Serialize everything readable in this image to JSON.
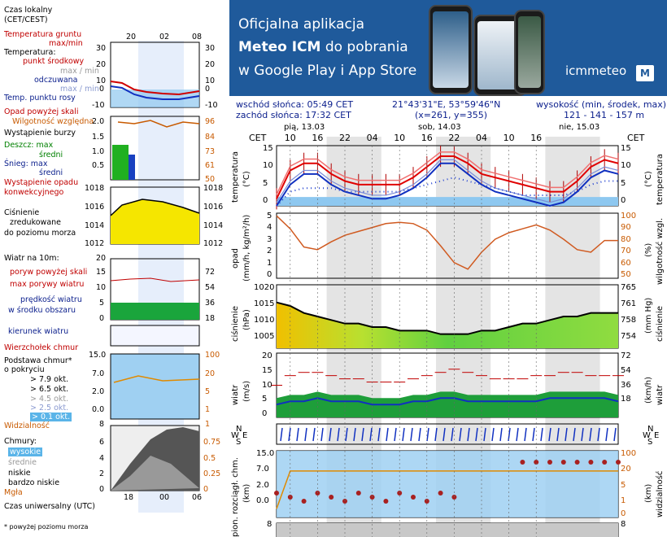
{
  "legend": {
    "time_local": "Czas lokalny",
    "time_local_zone": "(CET/CEST)",
    "soil_temp": "Temperatura gruntu",
    "soil_temp_max_min": "max/min",
    "temperature": "Temperatura:",
    "mid_point": "punkt środkowy",
    "max_min_1": "max / min",
    "feels_like": "odczuwana",
    "max_min_2": "max / min",
    "dew_point": "Temp. punktu rosy",
    "precip_above_scale": "Opad powyżej skali",
    "humidity": "Wilgotność względna",
    "storm": "Wystąpienie burzy",
    "rain": "Deszcz: max",
    "rain_mean": "średni",
    "snow": "Śnieg: max",
    "snow_mean": "średni",
    "convective": "Wystąpienie opadu",
    "convective2": "konwekcyjnego",
    "pressure1": "Ciśnienie",
    "pressure2": "zredukowane",
    "pressure3": "do poziomu morza",
    "wind_10m": "Wiatr na 10m:",
    "gusts_above": "poryw powyżej skali",
    "gusts_max": "max porywy wiatru",
    "wind_speed": "prędkość wiatru",
    "wind_area": "w środku obszaru",
    "wind_dir": "kierunek wiatru",
    "cloud_top": "Wierzchołek chmur",
    "cloud_base1": "Podstawa chmur*",
    "cloud_base2": "o pokryciu",
    "okt79": "> 7.9 okt.",
    "okt65": "> 6.5 okt.",
    "okt45": "> 4.5 okt.",
    "okt25": "> 2.5 okt.",
    "okt01": "> 0.1 okt.",
    "visibility": "Widzialność",
    "clouds": "Chmury:",
    "high": "wysokie",
    "mid": "średnie",
    "low": "niskie",
    "very_low": "bardzo niskie",
    "fog": "Mgła",
    "utc": "Czas uniwersalny (UTC)",
    "footnote": "* powyżej poziomu morza"
  },
  "legend_axes": {
    "local_hours": [
      "20",
      "02",
      "08"
    ],
    "utc_hours": [
      "18",
      "00",
      "06"
    ],
    "temp_ticks": [
      "30",
      "20",
      "10",
      "0",
      "-10"
    ],
    "precip_ticks": [
      "2.0",
      "1.5",
      "1.0",
      "0.5"
    ],
    "humidity_ticks": [
      "96",
      "84",
      "73",
      "61",
      "50"
    ],
    "pressure_ticks": [
      "1018",
      "1016",
      "1014",
      "1012"
    ],
    "wind_ticks": [
      "20",
      "15",
      "10",
      "5",
      "0"
    ],
    "wind_kmh_ticks": [
      "72",
      "54",
      "36",
      "18"
    ],
    "cloud_ticks": [
      "15.0",
      "7.0",
      "2.0",
      "0.0"
    ],
    "vis_ticks": [
      "100",
      "20",
      "5",
      "1"
    ],
    "cloud_cover_ticks": [
      "8",
      "6",
      "4",
      "2",
      "0"
    ],
    "cloud_cover_frac": [
      "1",
      "0.75",
      "0.5",
      "0.25",
      "0"
    ],
    "zero": "0",
    "eight": "8",
    "one": "1"
  },
  "banner": {
    "line1_a": "Oficjalna aplikacja",
    "line2_a": "Meteo ICM",
    "line2_b": " do pobrania",
    "line3": "w Google Play i App Store",
    "logo": "icmmeteo",
    "logo_m": "M"
  },
  "info": {
    "sunrise": "wschód słońca: 05:49 CET",
    "sunset": "zachód słońca: 17:32 CET",
    "coords": "21°43'31\"E, 53°59'46\"N",
    "grid": "(x=261, y=355)",
    "elevation_label": "wysokość (min, środek, max)",
    "elevation": "121 - 141 - 157 m",
    "cet": "CET"
  },
  "days": [
    "pią, 13.03",
    "sob, 14.03",
    "nie, 15.03"
  ],
  "hours": [
    "10",
    "16",
    "22",
    "04",
    "10",
    "16",
    "22",
    "04",
    "10",
    "16"
  ],
  "panels": {
    "temp": {
      "left": "temperatura",
      "left_unit": "(°C)",
      "right": "temperatura",
      "right_unit": "(°C)",
      "ticks": [
        "15",
        "10",
        "5",
        "0"
      ]
    },
    "precip": {
      "left": "opad",
      "left_unit": "(mm/h, kg/m²/h)",
      "right": "wilgotność wzgl.",
      "right_unit": "(%)",
      "ticks_l": [
        "5",
        "4",
        "3",
        "2",
        "1",
        "0"
      ],
      "ticks_r": [
        "100",
        "90",
        "80",
        "70",
        "60",
        "50"
      ]
    },
    "press": {
      "left": "ciśnienie",
      "left_unit": "(hPa)",
      "right": "ciśnienie",
      "right_unit": "(mm Hg)",
      "ticks_l": [
        "1020",
        "1015",
        "1010",
        "1005"
      ],
      "ticks_r": [
        "765",
        "761",
        "758",
        "754"
      ]
    },
    "wind": {
      "left": "wiatr",
      "left_unit": "(m/s)",
      "right": "wiatr",
      "right_unit": "(km/h)",
      "ticks_l": [
        "20",
        "15",
        "10",
        "5",
        "0"
      ],
      "ticks_r": [
        "72",
        "54",
        "36",
        "18"
      ]
    },
    "dir": {
      "n": "N",
      "w": "W",
      "e": "E",
      "s": "S"
    },
    "cloud": {
      "left": "pion. rozciągł. chm.",
      "left_unit": "(km)",
      "right": "widzialność",
      "right_unit": "(km)",
      "ticks_l": [
        "15.0",
        "7.0",
        "2.0",
        "0.0"
      ],
      "ticks_r": [
        "100",
        "20",
        "5",
        "1",
        "0"
      ]
    },
    "cover": {
      "tick": "8"
    }
  },
  "chart_data": {
    "type": "line",
    "x_hours_cet": [
      7,
      10,
      13,
      16,
      19,
      22,
      25,
      28,
      31,
      34,
      37,
      40,
      43,
      46,
      49,
      52,
      55,
      58,
      61,
      64,
      67,
      70,
      73,
      76,
      79,
      82
    ],
    "series": [
      {
        "name": "temperatura",
        "values": [
          0,
          8,
          10,
          10,
          7,
          5,
          4,
          4,
          4,
          4,
          6,
          9,
          12,
          12,
          10,
          7,
          6,
          5,
          4,
          3,
          2,
          2,
          5,
          9,
          11,
          10
        ]
      },
      {
        "name": "odczuwana",
        "values": [
          -2,
          4,
          7,
          7,
          4,
          2,
          1,
          0,
          0,
          1,
          3,
          6,
          10,
          10,
          7,
          4,
          2,
          1,
          0,
          -1,
          -2,
          -1,
          2,
          6,
          8,
          7
        ]
      },
      {
        "name": "punkt rosy",
        "values": [
          -2,
          2,
          3,
          3,
          3,
          2,
          2,
          2,
          2,
          2,
          3,
          4,
          5,
          6,
          5,
          4,
          3,
          2,
          1,
          1,
          1,
          1,
          2,
          4,
          5,
          5
        ]
      },
      {
        "name": "wilgotność",
        "values": [
          98,
          88,
          74,
          72,
          78,
          83,
          86,
          89,
          92,
          93,
          92,
          87,
          75,
          62,
          57,
          70,
          80,
          85,
          88,
          91,
          87,
          80,
          72,
          70,
          79,
          79
        ]
      },
      {
        "name": "ciśnienie",
        "values": [
          1016,
          1015,
          1013,
          1012,
          1011,
          1010,
          1010,
          1009,
          1009,
          1008,
          1008,
          1008,
          1007,
          1007,
          1007,
          1008,
          1008,
          1009,
          1010,
          1010,
          1011,
          1012,
          1012,
          1013,
          1013,
          1013
        ]
      },
      {
        "name": "wiatr",
        "values": [
          4,
          5,
          5,
          6,
          5,
          5,
          5,
          4,
          4,
          4,
          5,
          5,
          6,
          6,
          5,
          5,
          5,
          5,
          5,
          5,
          6,
          6,
          6,
          6,
          6,
          5
        ]
      },
      {
        "name": "porywy",
        "values": [
          10,
          13,
          14,
          14,
          13,
          12,
          12,
          11,
          11,
          11,
          12,
          13,
          14,
          15,
          14,
          13,
          12,
          12,
          12,
          13,
          13,
          14,
          14,
          13,
          13,
          13
        ]
      },
      {
        "name": "widzialność",
        "values": [
          1,
          20,
          20,
          20,
          20,
          20,
          20,
          20,
          20,
          20,
          20,
          20,
          20,
          20,
          20,
          20,
          20,
          20,
          20,
          20,
          20,
          20,
          20,
          20,
          20,
          20
        ]
      }
    ],
    "ylim_temp": [
      -2,
      15
    ],
    "ylim_precip": [
      0,
      5
    ],
    "ylim_humidity": [
      50,
      100
    ],
    "ylim_pressure": [
      1003,
      1021
    ],
    "ylim_wind": [
      0,
      20
    ],
    "grid": true
  }
}
